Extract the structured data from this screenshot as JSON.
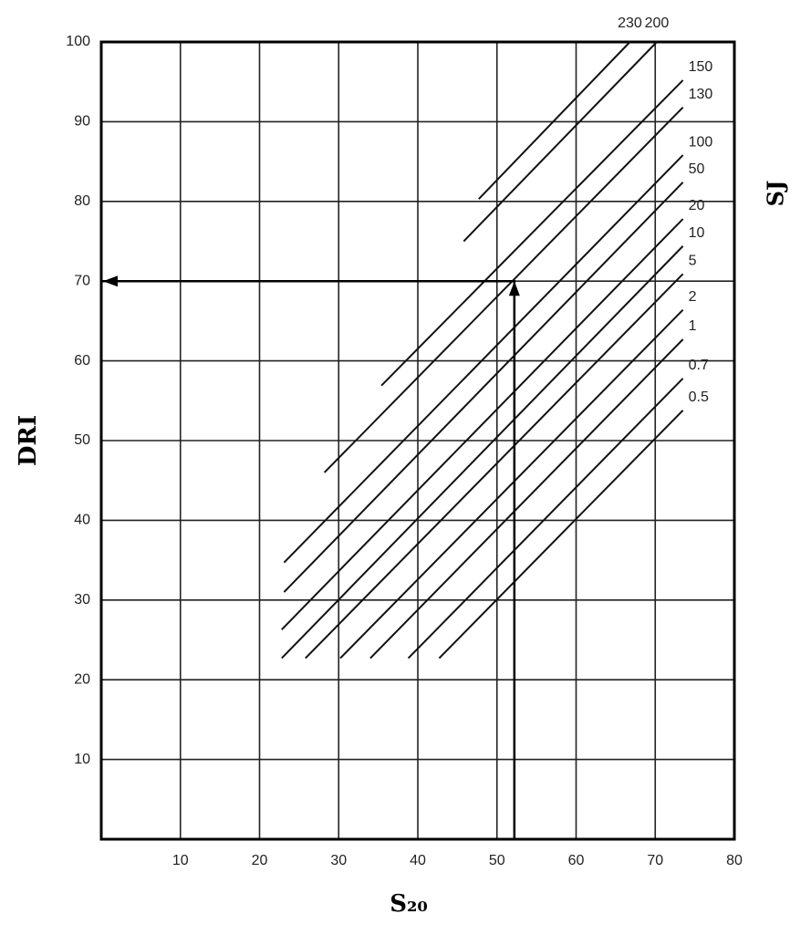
{
  "chart_data": {
    "type": "line",
    "xlabel": "S₂₀",
    "ylabel": "DRI",
    "y2label": "SJ",
    "xlim": [
      0,
      80
    ],
    "ylim": [
      0,
      100
    ],
    "xticks": [
      10,
      20,
      30,
      40,
      50,
      60,
      70,
      80
    ],
    "yticks": [
      10,
      20,
      30,
      40,
      50,
      60,
      70,
      80,
      90,
      100
    ],
    "grid": true,
    "color": "#111111",
    "series": [
      {
        "name": "230",
        "x": [
          47.7,
          66.8
        ],
        "values": [
          80.3,
          100
        ]
      },
      {
        "name": "200",
        "x": [
          45.8,
          70.2
        ],
        "values": [
          75,
          100
        ]
      },
      {
        "name": "150",
        "x": [
          35.4,
          73.5
        ],
        "values": [
          56.9,
          95.2
        ]
      },
      {
        "name": "130",
        "x": [
          28.2,
          73.5
        ],
        "values": [
          46,
          91.8
        ]
      },
      {
        "name": "100",
        "x": [
          23.1,
          73.5
        ],
        "values": [
          34.7,
          85.8
        ]
      },
      {
        "name": "50",
        "x": [
          23.1,
          73.5
        ],
        "values": [
          31,
          82.4
        ]
      },
      {
        "name": "20",
        "x": [
          22.8,
          73.5
        ],
        "values": [
          26.3,
          77.8
        ]
      },
      {
        "name": "10",
        "x": [
          22.8,
          73.5
        ],
        "values": [
          22.7,
          74.4
        ]
      },
      {
        "name": "5",
        "x": [
          25.8,
          73.5
        ],
        "values": [
          22.7,
          70.9
        ]
      },
      {
        "name": "2",
        "x": [
          30.2,
          73.5
        ],
        "values": [
          22.7,
          66.4
        ]
      },
      {
        "name": "1",
        "x": [
          34,
          73.5
        ],
        "values": [
          22.7,
          62.7
        ]
      },
      {
        "name": "0.7",
        "x": [
          38.8,
          73.5
        ],
        "values": [
          22.7,
          57.8
        ]
      },
      {
        "name": "0.5",
        "x": [
          42.7,
          73.5
        ],
        "values": [
          22.7,
          53.8
        ]
      }
    ],
    "arrow": {
      "x": [
        52.2,
        52.2,
        0
      ],
      "values": [
        0,
        70,
        70
      ]
    }
  }
}
